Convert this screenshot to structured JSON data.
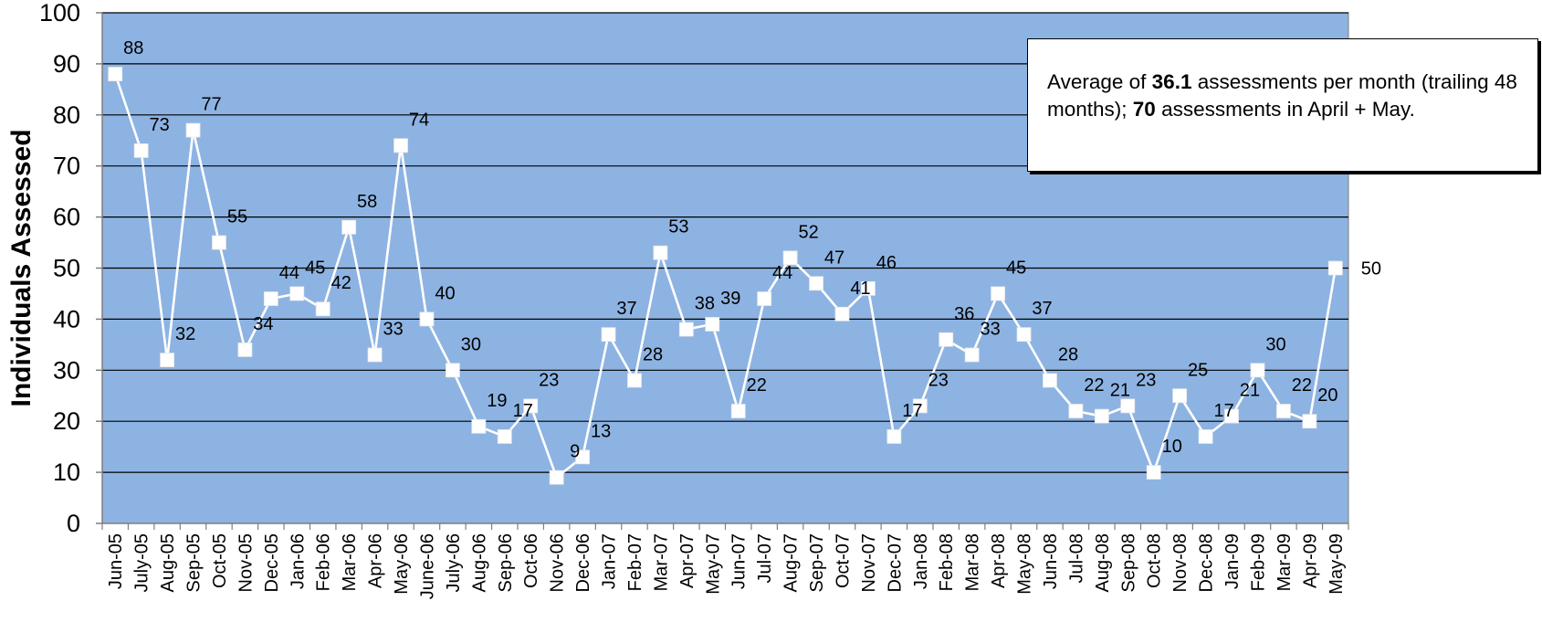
{
  "chart_data": {
    "type": "line",
    "title": "",
    "xlabel": "",
    "ylabel": "Individuals Assessed",
    "ylim": [
      0,
      100
    ],
    "yticks": [
      0,
      10,
      20,
      30,
      40,
      50,
      60,
      70,
      80,
      90,
      100
    ],
    "grid": true,
    "colors": {
      "plot_background": "#8db3e2",
      "series_line": "#ffffff",
      "marker": "#ffffff",
      "gridline": "#000000"
    },
    "categories": [
      "Jun-05",
      "July-05",
      "Aug-05",
      "Sep-05",
      "Oct-05",
      "Nov-05",
      "Dec-05",
      "Jan-06",
      "Feb-06",
      "Mar-06",
      "Apr-06",
      "May-06",
      "June-06",
      "July-06",
      "Aug-06",
      "Sep-06",
      "Oct-06",
      "Nov-06",
      "Dec-06",
      "Jan-07",
      "Feb-07",
      "Mar-07",
      "Apr-07",
      "May-07",
      "Jun-07",
      "Jul-07",
      "Aug-07",
      "Sep-07",
      "Oct-07",
      "Nov-07",
      "Dec-07",
      "Jan-08",
      "Feb-08",
      "Mar-08",
      "Apr-08",
      "May-08",
      "Jun-08",
      "Jul-08",
      "Aug-08",
      "Sep-08",
      "Oct-08",
      "Nov-08",
      "Dec-08",
      "Jan-09",
      "Feb-09",
      "Mar-09",
      "Apr-09",
      "May-09"
    ],
    "series": [
      {
        "values": [
          88,
          73,
          32,
          77,
          55,
          34,
          44,
          45,
          42,
          58,
          33,
          74,
          40,
          30,
          19,
          17,
          23,
          9,
          13,
          37,
          28,
          53,
          38,
          39,
          22,
          44,
          52,
          47,
          41,
          46,
          17,
          23,
          36,
          33,
          45,
          37,
          28,
          22,
          21,
          23,
          10,
          25,
          17,
          21,
          30,
          22,
          20,
          50
        ]
      }
    ]
  },
  "annotation": {
    "prefix": "Average of ",
    "average": "36.1",
    "mid": " assessments per month (trailing 48 months); ",
    "total": "70",
    "suffix": " assessments in April + May."
  }
}
